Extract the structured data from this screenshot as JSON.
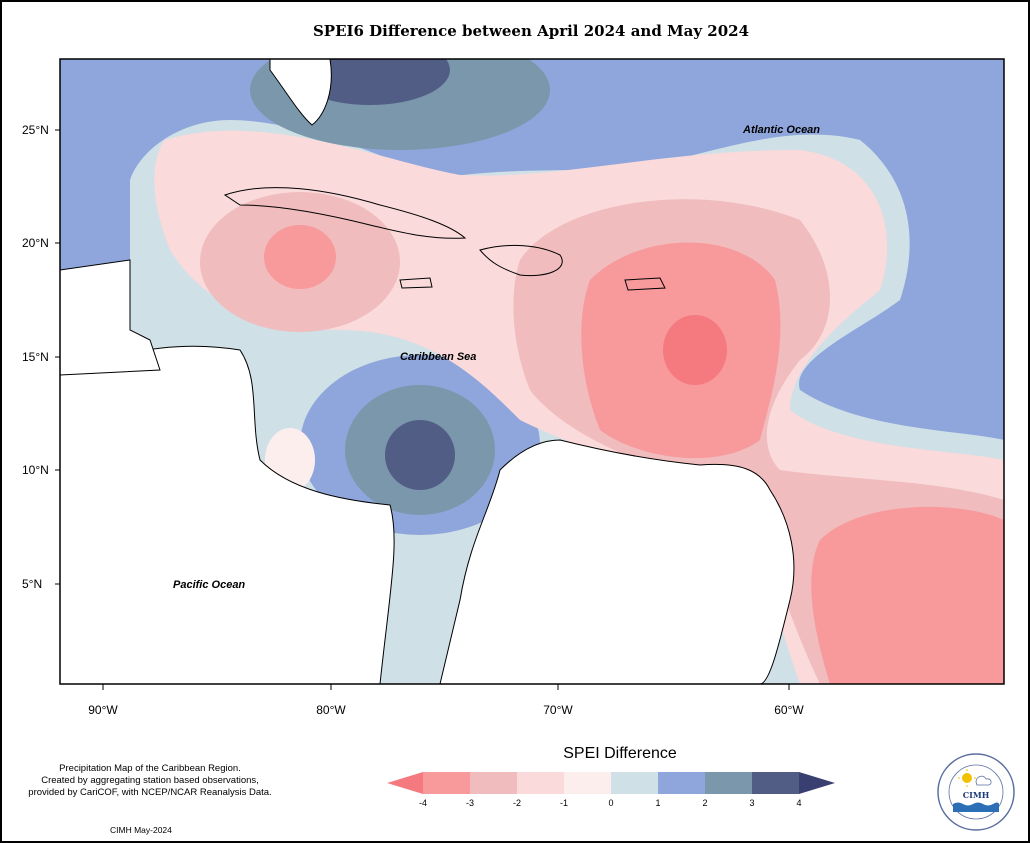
{
  "title": "SPEI6 Difference between April 2024 and May 2024",
  "axes": {
    "latitudes": [
      "25°N",
      "20°N",
      "15°N",
      "10°N",
      "5°N"
    ],
    "longitudes": [
      "90°W",
      "80°W",
      "70°W",
      "60°W"
    ]
  },
  "labels": {
    "atlantic": "Atlantic Ocean",
    "caribbean": "Caribbean Sea",
    "pacific": "Pacific Ocean"
  },
  "caption": {
    "line1": "Precipitation Map of the Caribbean Region.",
    "line2": "Created by aggregating station based observations,",
    "line3": "provided by CariCOF, with NCEP/NCAR Reanalysis Data."
  },
  "credit": "CIMH May-2024",
  "legend": {
    "title": "SPEI Difference",
    "ticks": [
      "-4",
      "-3",
      "-2",
      "-1",
      "0",
      "1",
      "2",
      "3",
      "4"
    ],
    "colors": [
      "#f47a80",
      "#f8999c",
      "#f0bcbd",
      "#fadadb",
      "#fdeeee",
      "#cfe0e6",
      "#8ea6dc",
      "#7a97ab",
      "#525d86",
      "#3a3f72"
    ]
  },
  "logo": {
    "text": "CIMH",
    "ring_text": "Caribbean Institute for Meteorology and Hydrology"
  }
}
